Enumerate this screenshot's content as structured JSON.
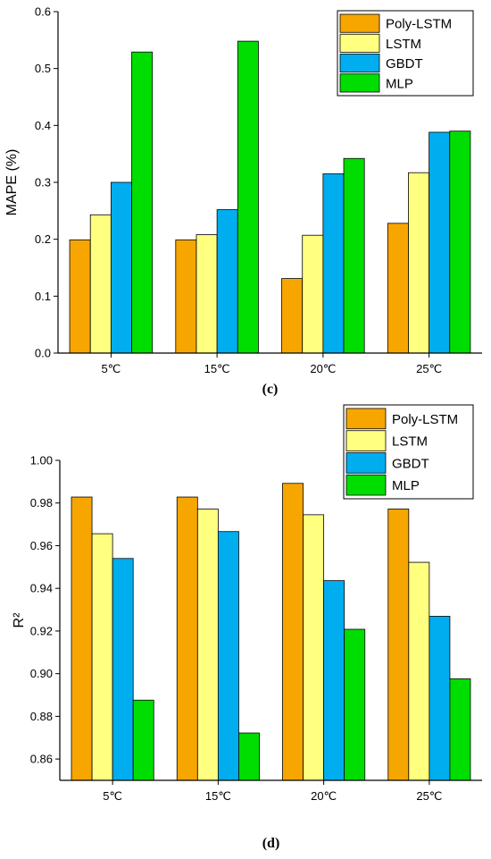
{
  "chart_data": [
    {
      "type": "bar",
      "panel_label": "(c)",
      "categories": [
        "5℃",
        "15℃",
        "20℃",
        "25℃"
      ],
      "series": [
        {
          "name": "Poly-LSTM",
          "color": "#f7a600",
          "values": [
            0.199,
            0.199,
            0.131,
            0.228
          ]
        },
        {
          "name": "LSTM",
          "color": "#ffff80",
          "values": [
            0.243,
            0.208,
            0.207,
            0.317
          ]
        },
        {
          "name": "GBDT",
          "color": "#00aeef",
          "values": [
            0.3,
            0.252,
            0.315,
            0.388
          ]
        },
        {
          "name": "MLP",
          "color": "#00dd00",
          "values": [
            0.529,
            0.548,
            0.342,
            0.39
          ]
        }
      ],
      "ylabel": "MAPE (%)",
      "ylim": [
        0.0,
        0.6
      ],
      "yticks": [
        "0.0",
        "0.1",
        "0.2",
        "0.3",
        "0.4",
        "0.5",
        "0.6"
      ],
      "legend_position": "top-right",
      "grid": false
    },
    {
      "type": "bar",
      "panel_label": "(d)",
      "categories": [
        "5℃",
        "15℃",
        "20℃",
        "25℃"
      ],
      "series": [
        {
          "name": "Poly-LSTM",
          "color": "#f7a600",
          "values": [
            0.9828,
            0.9828,
            0.9892,
            0.9772
          ]
        },
        {
          "name": "LSTM",
          "color": "#ffff80",
          "values": [
            0.9656,
            0.9772,
            0.9745,
            0.9522
          ]
        },
        {
          "name": "GBDT",
          "color": "#00aeef",
          "values": [
            0.954,
            0.9666,
            0.9436,
            0.9269
          ]
        },
        {
          "name": "MLP",
          "color": "#00dd00",
          "values": [
            0.8876,
            0.8722,
            0.9208,
            0.8976
          ]
        }
      ],
      "ylabel": "R²",
      "ylim": [
        0.85,
        1.0
      ],
      "yticks": [
        "0.86",
        "0.88",
        "0.90",
        "0.92",
        "0.94",
        "0.96",
        "0.98",
        "1.00"
      ],
      "legend_position": "top-right",
      "grid": false
    }
  ]
}
